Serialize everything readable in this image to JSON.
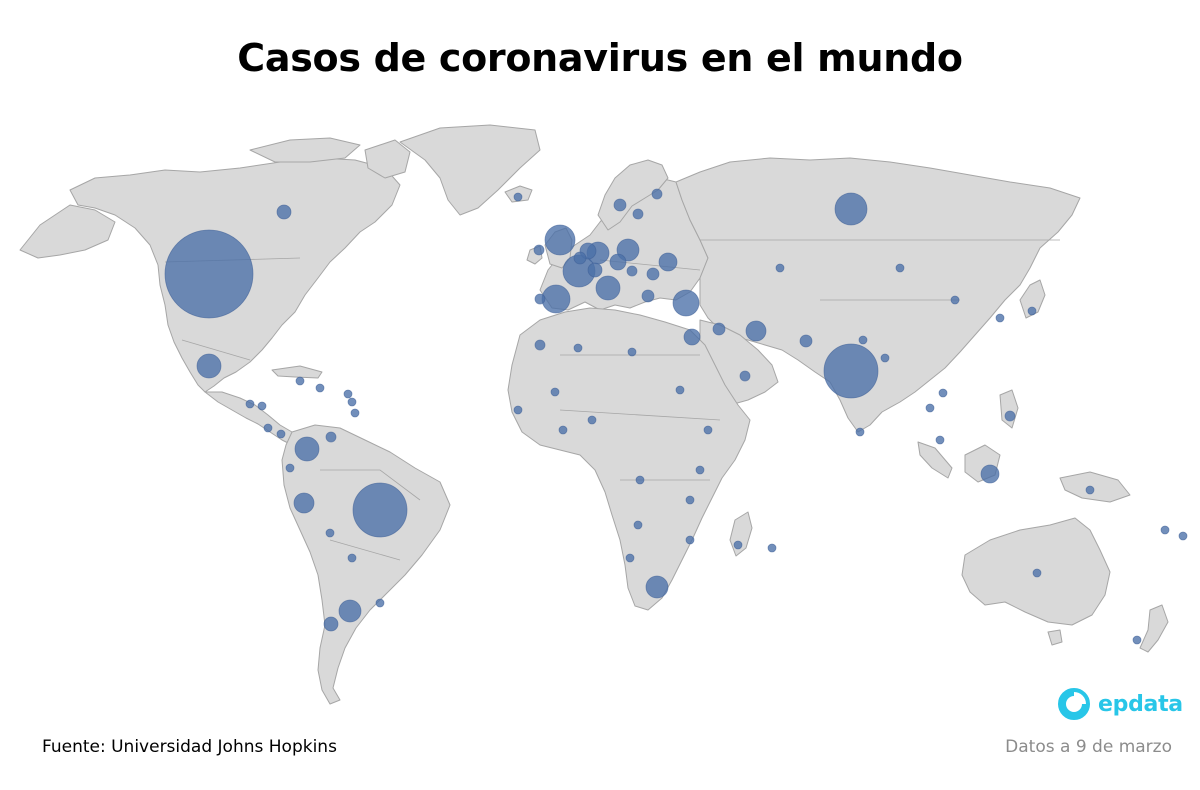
{
  "title": "Casos de coronavirus en el mundo",
  "source": "Fuente: Universidad Johns Hopkins",
  "date_note": "Datos a 9 de marzo",
  "brand": {
    "name": "epdata",
    "logo_icon": "epdata-ring-icon",
    "color": "#28c6e8"
  },
  "map": {
    "land_color": "#d9d9d9",
    "border_color": "#a6a6a6",
    "bubble_color": "#4a6fa8"
  },
  "bubbles": [
    {
      "region": "united-states",
      "size": "very-large"
    },
    {
      "region": "brazil",
      "size": "large"
    },
    {
      "region": "india",
      "size": "large"
    },
    {
      "region": "mexico",
      "size": "medium"
    },
    {
      "region": "canada",
      "size": "small"
    },
    {
      "region": "colombia",
      "size": "medium"
    },
    {
      "region": "peru",
      "size": "medium"
    },
    {
      "region": "argentina",
      "size": "medium"
    },
    {
      "region": "chile",
      "size": "small"
    },
    {
      "region": "united-kingdom",
      "size": "medium-large"
    },
    {
      "region": "france",
      "size": "medium-large"
    },
    {
      "region": "spain",
      "size": "medium-large"
    },
    {
      "region": "germany",
      "size": "medium"
    },
    {
      "region": "italy",
      "size": "medium"
    },
    {
      "region": "russia",
      "size": "medium"
    },
    {
      "region": "turkey",
      "size": "medium"
    },
    {
      "region": "iran",
      "size": "medium"
    },
    {
      "region": "south-africa",
      "size": "medium"
    },
    {
      "region": "indonesia",
      "size": "small"
    }
  ]
}
